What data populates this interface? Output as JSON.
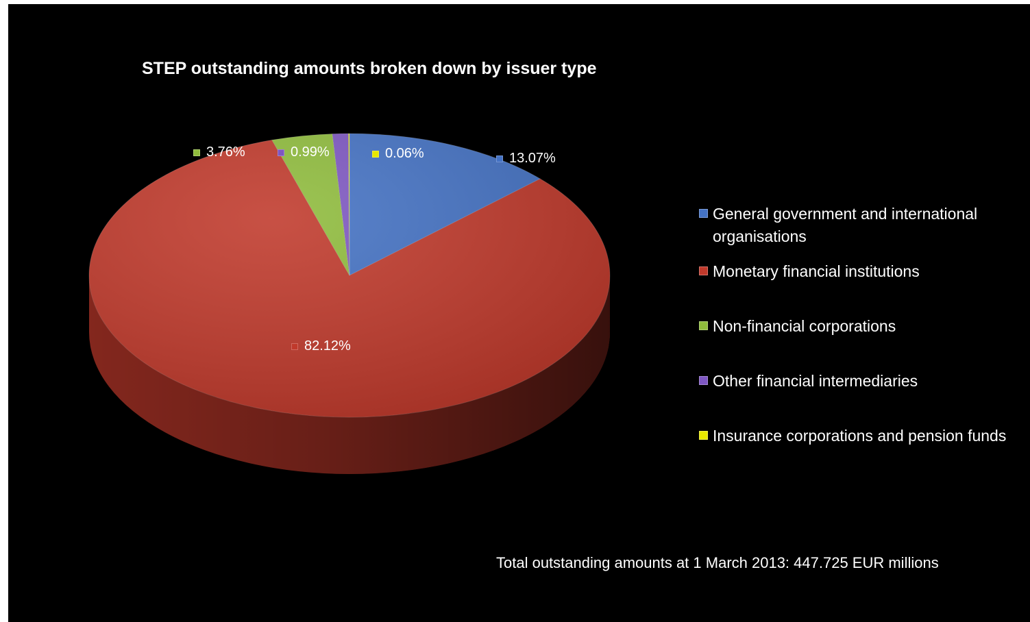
{
  "chart_data": {
    "type": "pie",
    "title": "STEP outstanding amounts broken down by issuer type",
    "categories": [
      "General government and international organisations",
      "Monetary financial institutions",
      "Non-financial corporations",
      "Other financial intermediaries",
      "Insurance corporations and pension funds"
    ],
    "values": [
      13.07,
      82.12,
      3.76,
      0.99,
      0.06
    ],
    "data_labels": [
      "13.07%",
      "82.12%",
      "3.76%",
      "0.99%",
      "0.06%"
    ],
    "colors": [
      "#4472c4",
      "#c0392b",
      "#8fbc3c",
      "#7e57c2",
      "#e8e800"
    ],
    "start_angle_deg": 0,
    "direction": "clockwise",
    "style": "3d",
    "legend_placement": "right",
    "note": "Total outstanding amounts at 1 March 2013: 447.725 EUR millions"
  }
}
